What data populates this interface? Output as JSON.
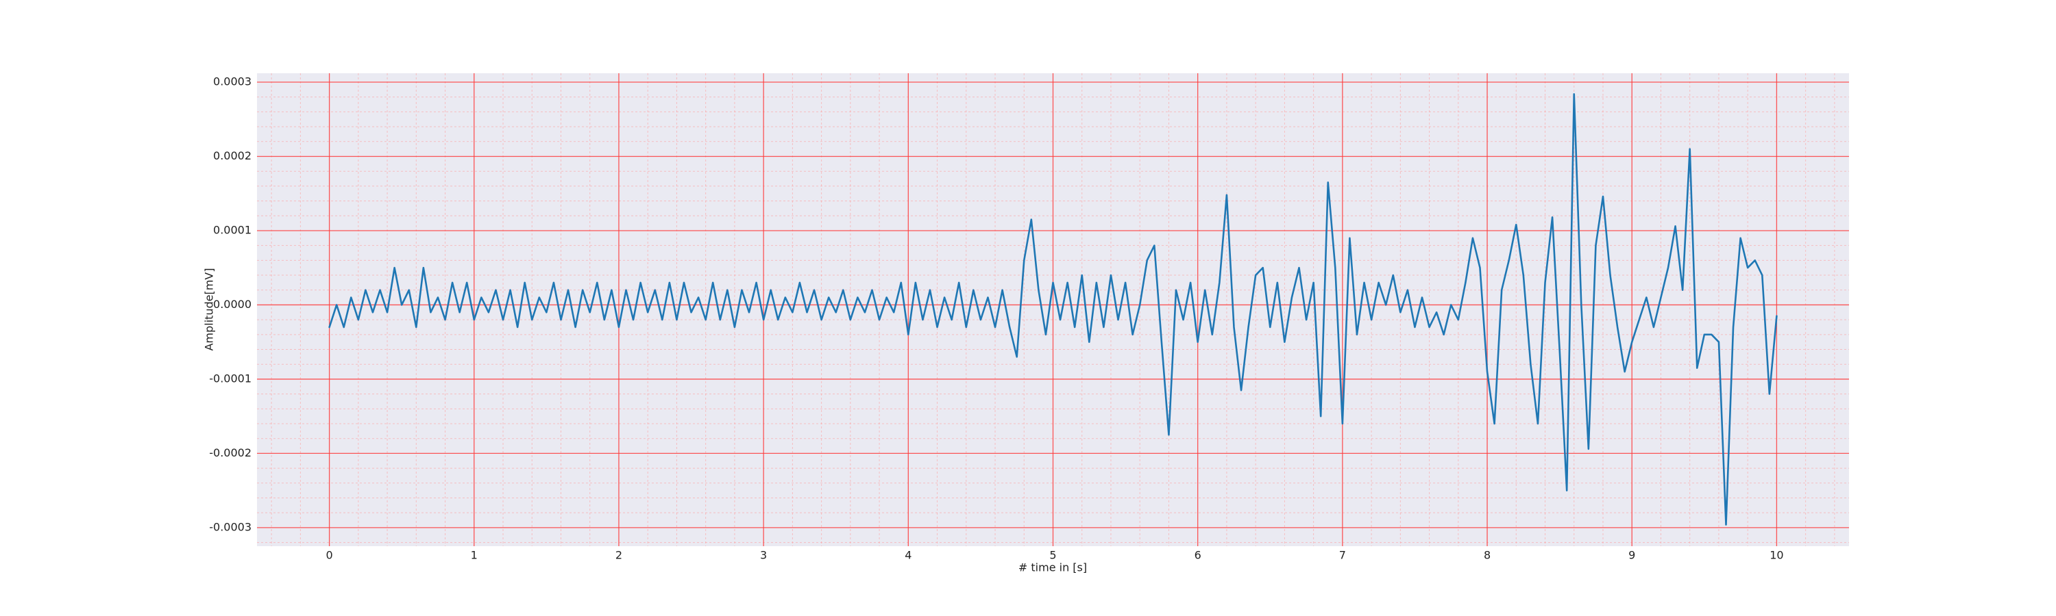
{
  "chart_data": {
    "type": "line",
    "xlabel": "# time in [s]",
    "ylabel": "Amplitude[mV]",
    "color": "#1f77b4",
    "grid": true,
    "minor_divisions": 5,
    "xlim": [
      -0.5,
      10.5
    ],
    "xticks": [
      0,
      1,
      2,
      3,
      4,
      5,
      6,
      7,
      8,
      9,
      10
    ],
    "ylim": [
      -0.000325,
      0.000312
    ],
    "yticks": [
      -0.0003,
      -0.0002,
      -0.0001,
      {
        "value": 0,
        "label": "0.0000"
      },
      0.0001,
      0.0002,
      0.0003
    ],
    "x": [
      0,
      0.05,
      0.1,
      0.15,
      0.2,
      0.25,
      0.3,
      0.35,
      0.4,
      0.45,
      0.5,
      0.55,
      0.6,
      0.65,
      0.7,
      0.75,
      0.8,
      0.85,
      0.9,
      0.95,
      1,
      1.05,
      1.1,
      1.15,
      1.2,
      1.25,
      1.3,
      1.35,
      1.4,
      1.45,
      1.5,
      1.55,
      1.6,
      1.65,
      1.7,
      1.75,
      1.8,
      1.85,
      1.9,
      1.95,
      2,
      2.05,
      2.1,
      2.15,
      2.2,
      2.25,
      2.3,
      2.35,
      2.4,
      2.45,
      2.5,
      2.55,
      2.6,
      2.65,
      2.7,
      2.75,
      2.8,
      2.85,
      2.9,
      2.95,
      3,
      3.05,
      3.1,
      3.15,
      3.2,
      3.25,
      3.3,
      3.35,
      3.4,
      3.45,
      3.5,
      3.55,
      3.6,
      3.65,
      3.7,
      3.75,
      3.8,
      3.85,
      3.9,
      3.95,
      4,
      4.05,
      4.1,
      4.15,
      4.2,
      4.25,
      4.3,
      4.35,
      4.4,
      4.45,
      4.5,
      4.55,
      4.6,
      4.65,
      4.7,
      4.75,
      4.8,
      4.85,
      4.9,
      4.95,
      5,
      5.05,
      5.1,
      5.15,
      5.2,
      5.25,
      5.3,
      5.35,
      5.4,
      5.45,
      5.5,
      5.55,
      5.6,
      5.65,
      5.7,
      5.75,
      5.8,
      5.85,
      5.9,
      5.95,
      6,
      6.05,
      6.1,
      6.15,
      6.2,
      6.25,
      6.3,
      6.35,
      6.4,
      6.45,
      6.5,
      6.55,
      6.6,
      6.65,
      6.7,
      6.75,
      6.8,
      6.85,
      6.9,
      6.95,
      7,
      7.05,
      7.1,
      7.15,
      7.2,
      7.25,
      7.3,
      7.35,
      7.4,
      7.45,
      7.5,
      7.55,
      7.6,
      7.65,
      7.7,
      7.75,
      7.8,
      7.85,
      7.9,
      7.95,
      8,
      8.05,
      8.1,
      8.15,
      8.2,
      8.25,
      8.3,
      8.35,
      8.4,
      8.45,
      8.5,
      8.55,
      8.6,
      8.65,
      8.7,
      8.75,
      8.8,
      8.85,
      8.9,
      8.95,
      9,
      9.05,
      9.1,
      9.15,
      9.2,
      9.25,
      9.3,
      9.35,
      9.4,
      9.45,
      9.5,
      9.55,
      9.6,
      9.65,
      9.7,
      9.75,
      9.8,
      9.85,
      9.9,
      9.95,
      10
    ],
    "values": [
      -3e-05,
      0,
      -3e-05,
      1e-05,
      -2e-05,
      2e-05,
      -1e-05,
      2e-05,
      -1e-05,
      5e-05,
      0,
      2e-05,
      -3e-05,
      5e-05,
      -1e-05,
      1e-05,
      -2e-05,
      3e-05,
      -1e-05,
      3e-05,
      -2e-05,
      1e-05,
      -1e-05,
      2e-05,
      -2e-05,
      2e-05,
      -3e-05,
      3e-05,
      -2e-05,
      1e-05,
      -1e-05,
      3e-05,
      -2e-05,
      2e-05,
      -3e-05,
      2e-05,
      -1e-05,
      3e-05,
      -2e-05,
      2e-05,
      -3e-05,
      2e-05,
      -2e-05,
      3e-05,
      -1e-05,
      2e-05,
      -2e-05,
      3e-05,
      -2e-05,
      3e-05,
      -1e-05,
      1e-05,
      -2e-05,
      3e-05,
      -2e-05,
      2e-05,
      -3e-05,
      2e-05,
      -1e-05,
      3e-05,
      -2e-05,
      2e-05,
      -2e-05,
      1e-05,
      -1e-05,
      3e-05,
      -1e-05,
      2e-05,
      -2e-05,
      1e-05,
      -1e-05,
      2e-05,
      -2e-05,
      1e-05,
      -1e-05,
      2e-05,
      -2e-05,
      1e-05,
      -1e-05,
      3e-05,
      -4e-05,
      3e-05,
      -2e-05,
      2e-05,
      -3e-05,
      1e-05,
      -2e-05,
      3e-05,
      -3e-05,
      2e-05,
      -2e-05,
      1e-05,
      -3e-05,
      2e-05,
      -3e-05,
      -7e-05,
      6e-05,
      0.000115,
      2e-05,
      -4e-05,
      3e-05,
      -2e-05,
      3e-05,
      -3e-05,
      4e-05,
      -5e-05,
      3e-05,
      -3e-05,
      4e-05,
      -2e-05,
      3e-05,
      -4e-05,
      0,
      6e-05,
      8e-05,
      -5e-05,
      -0.000175,
      2e-05,
      -2e-05,
      3e-05,
      -5e-05,
      2e-05,
      -4e-05,
      3e-05,
      0.000148,
      -3e-05,
      -0.000115,
      -3e-05,
      4e-05,
      5e-05,
      -3e-05,
      3e-05,
      -5e-05,
      1e-05,
      5e-05,
      -2e-05,
      3e-05,
      -0.00015,
      0.000165,
      5e-05,
      -0.00016,
      9e-05,
      -4e-05,
      3e-05,
      -2e-05,
      3e-05,
      0,
      4e-05,
      -1e-05,
      2e-05,
      -3e-05,
      1e-05,
      -3e-05,
      -1e-05,
      -4e-05,
      0,
      -2e-05,
      3e-05,
      9e-05,
      5e-05,
      -9e-05,
      -0.00016,
      2e-05,
      6e-05,
      0.000108,
      4e-05,
      -8e-05,
      -0.00016,
      3e-05,
      0.000118,
      -6e-05,
      -0.00025,
      0.000284,
      0,
      -0.000194,
      8e-05,
      0.000146,
      4e-05,
      -3e-05,
      -9e-05,
      -5e-05,
      -2e-05,
      1e-05,
      -3e-05,
      1e-05,
      5e-05,
      0.000106,
      2e-05,
      0.00021,
      -8.5e-05,
      -4e-05,
      -4e-05,
      -5e-05,
      -0.000296,
      -3e-05,
      9e-05,
      5e-05,
      6e-05,
      4e-05,
      -0.00012,
      -1.5e-05
    ]
  }
}
